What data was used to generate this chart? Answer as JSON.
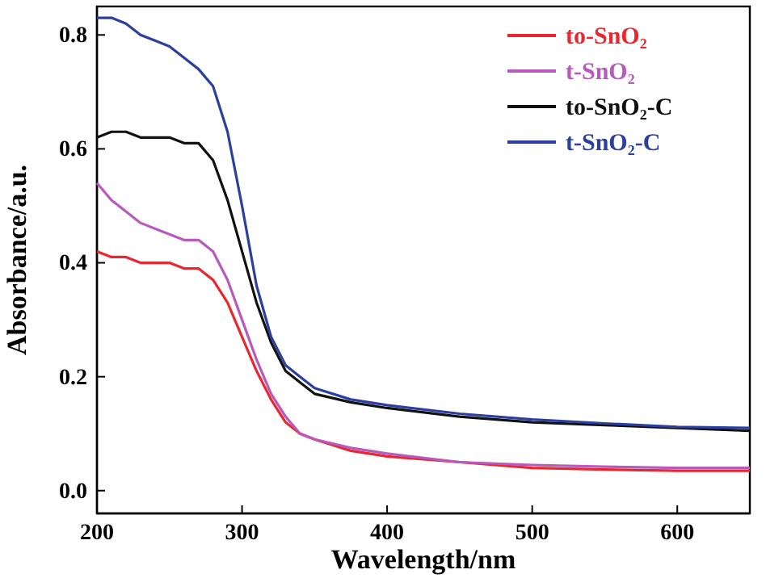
{
  "chart_data": {
    "type": "line",
    "xlabel": "Wavelength/nm",
    "ylabel": "Absorbance/a.u.",
    "xlim": [
      200,
      650
    ],
    "ylim": [
      -0.04,
      0.85
    ],
    "xticks": [
      200,
      300,
      400,
      500,
      600
    ],
    "yticks": [
      {
        "value": 0,
        "label": "0.0"
      },
      0.2,
      0.4,
      0.6,
      0.8
    ],
    "legend": "top right",
    "grid": false,
    "marker": "none",
    "line_style": "solid",
    "x": [
      200,
      210,
      220,
      230,
      240,
      250,
      260,
      270,
      280,
      290,
      300,
      310,
      320,
      330,
      340,
      350,
      375,
      400,
      450,
      500,
      550,
      600,
      650
    ],
    "series": [
      {
        "name": "to-SnO₂",
        "color": "#e8272e",
        "values": [
          0.42,
          0.41,
          0.41,
          0.4,
          0.4,
          0.4,
          0.39,
          0.39,
          0.37,
          0.33,
          0.27,
          0.21,
          0.16,
          0.12,
          0.1,
          0.09,
          0.07,
          0.06,
          0.05,
          0.04,
          0.037,
          0.035,
          0.035
        ]
      },
      {
        "name": "t-SnO₂",
        "color": "#b65bbd",
        "values": [
          0.54,
          0.51,
          0.49,
          0.47,
          0.46,
          0.45,
          0.44,
          0.44,
          0.42,
          0.37,
          0.3,
          0.23,
          0.17,
          0.13,
          0.1,
          0.09,
          0.075,
          0.065,
          0.05,
          0.045,
          0.042,
          0.04,
          0.04
        ]
      },
      {
        "name": "to-SnO₂-C",
        "color": "#111111",
        "values": [
          0.62,
          0.63,
          0.63,
          0.62,
          0.62,
          0.62,
          0.61,
          0.61,
          0.58,
          0.51,
          0.42,
          0.33,
          0.26,
          0.21,
          0.19,
          0.17,
          0.155,
          0.145,
          0.13,
          0.12,
          0.115,
          0.11,
          0.105
        ]
      },
      {
        "name": "t-SnO₂-C",
        "color": "#2b3f9e",
        "values": [
          0.83,
          0.83,
          0.82,
          0.8,
          0.79,
          0.78,
          0.76,
          0.74,
          0.71,
          0.63,
          0.5,
          0.36,
          0.27,
          0.22,
          0.2,
          0.18,
          0.16,
          0.15,
          0.135,
          0.125,
          0.118,
          0.112,
          0.11
        ]
      }
    ]
  }
}
